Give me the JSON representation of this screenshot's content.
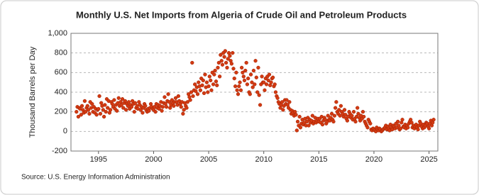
{
  "chart_data": {
    "type": "scatter",
    "title": "Monthly U.S. Net Imports from Algeria of Crude Oil and Petroleum Products",
    "y_label": "Thousand Barrels per Day",
    "source": "Source: U.S. Energy Information Administration",
    "color": "#d23a12",
    "grid": true,
    "xlim": [
      1992.5,
      2025.8
    ],
    "xticks": [
      1995,
      2000,
      2005,
      2010,
      2015,
      2020,
      2025
    ],
    "ylim": [
      -200,
      1000
    ],
    "yticks": [
      -200,
      0,
      200,
      400,
      600,
      800,
      {
        "value": 1000,
        "label": "1,000"
      }
    ],
    "x": [
      1993,
      1993.08,
      1993.17,
      1993.25,
      1993.33,
      1993.42,
      1993.5,
      1993.58,
      1993.67,
      1993.75,
      1993.83,
      1993.92,
      1994,
      1994.08,
      1994.17,
      1994.25,
      1994.33,
      1994.42,
      1994.5,
      1994.58,
      1994.67,
      1994.75,
      1994.83,
      1994.92,
      1995,
      1995.08,
      1995.17,
      1995.25,
      1995.33,
      1995.42,
      1995.5,
      1995.58,
      1995.67,
      1995.75,
      1995.83,
      1995.92,
      1996,
      1996.08,
      1996.17,
      1996.25,
      1996.33,
      1996.42,
      1996.5,
      1996.58,
      1996.67,
      1996.75,
      1996.83,
      1996.92,
      1997,
      1997.08,
      1997.17,
      1997.25,
      1997.33,
      1997.42,
      1997.5,
      1997.58,
      1997.67,
      1997.75,
      1997.83,
      1997.92,
      1998,
      1998.08,
      1998.17,
      1998.25,
      1998.33,
      1998.42,
      1998.5,
      1998.58,
      1998.67,
      1998.75,
      1998.83,
      1998.92,
      1999,
      1999.08,
      1999.17,
      1999.25,
      1999.33,
      1999.42,
      1999.5,
      1999.58,
      1999.67,
      1999.75,
      1999.83,
      1999.92,
      2000,
      2000.08,
      2000.17,
      2000.25,
      2000.33,
      2000.42,
      2000.5,
      2000.58,
      2000.67,
      2000.75,
      2000.83,
      2000.92,
      2001,
      2001.08,
      2001.17,
      2001.25,
      2001.33,
      2001.42,
      2001.5,
      2001.58,
      2001.67,
      2001.75,
      2001.83,
      2001.92,
      2002,
      2002.08,
      2002.17,
      2002.25,
      2002.33,
      2002.42,
      2002.5,
      2002.58,
      2002.67,
      2002.75,
      2002.83,
      2002.92,
      2003,
      2003.08,
      2003.17,
      2003.25,
      2003.33,
      2003.42,
      2003.5,
      2003.58,
      2003.67,
      2003.75,
      2003.83,
      2003.92,
      2004,
      2004.08,
      2004.17,
      2004.25,
      2004.33,
      2004.42,
      2004.5,
      2004.58,
      2004.67,
      2004.75,
      2004.83,
      2004.92,
      2005,
      2005.08,
      2005.17,
      2005.25,
      2005.33,
      2005.42,
      2005.5,
      2005.58,
      2005.67,
      2005.75,
      2005.83,
      2005.92,
      2006,
      2006.08,
      2006.17,
      2006.25,
      2006.33,
      2006.42,
      2006.5,
      2006.58,
      2006.67,
      2006.75,
      2006.83,
      2006.92,
      2007,
      2007.08,
      2007.17,
      2007.25,
      2007.33,
      2007.42,
      2007.5,
      2007.58,
      2007.67,
      2007.75,
      2007.83,
      2007.92,
      2008,
      2008.08,
      2008.17,
      2008.25,
      2008.33,
      2008.42,
      2008.5,
      2008.58,
      2008.67,
      2008.75,
      2008.83,
      2008.92,
      2009,
      2009.08,
      2009.17,
      2009.25,
      2009.33,
      2009.42,
      2009.5,
      2009.58,
      2009.67,
      2009.75,
      2009.83,
      2009.92,
      2010,
      2010.08,
      2010.17,
      2010.25,
      2010.33,
      2010.42,
      2010.5,
      2010.58,
      2010.67,
      2010.75,
      2010.83,
      2010.92,
      2011,
      2011.08,
      2011.17,
      2011.25,
      2011.33,
      2011.42,
      2011.5,
      2011.58,
      2011.67,
      2011.75,
      2011.83,
      2011.92,
      2012,
      2012.08,
      2012.17,
      2012.25,
      2012.33,
      2012.42,
      2012.5,
      2012.58,
      2012.67,
      2012.75,
      2012.83,
      2012.92,
      2013,
      2013.08,
      2013.17,
      2013.25,
      2013.33,
      2013.42,
      2013.5,
      2013.58,
      2013.67,
      2013.75,
      2013.83,
      2013.92,
      2014,
      2014.08,
      2014.17,
      2014.25,
      2014.33,
      2014.42,
      2014.5,
      2014.58,
      2014.67,
      2014.75,
      2014.83,
      2014.92,
      2015,
      2015.08,
      2015.17,
      2015.25,
      2015.33,
      2015.42,
      2015.5,
      2015.58,
      2015.67,
      2015.75,
      2015.83,
      2015.92,
      2016,
      2016.08,
      2016.17,
      2016.25,
      2016.33,
      2016.42,
      2016.5,
      2016.58,
      2016.67,
      2016.75,
      2016.83,
      2016.92,
      2017,
      2017.08,
      2017.17,
      2017.25,
      2017.33,
      2017.42,
      2017.5,
      2017.58,
      2017.67,
      2017.75,
      2017.83,
      2017.92,
      2018,
      2018.08,
      2018.17,
      2018.25,
      2018.33,
      2018.42,
      2018.5,
      2018.58,
      2018.67,
      2018.75,
      2018.83,
      2018.92,
      2019,
      2019.08,
      2019.17,
      2019.25,
      2019.33,
      2019.42,
      2019.5,
      2019.58,
      2019.67,
      2019.75,
      2019.83,
      2019.92,
      2020,
      2020.08,
      2020.17,
      2020.25,
      2020.33,
      2020.42,
      2020.5,
      2020.58,
      2020.67,
      2020.75,
      2020.83,
      2020.92,
      2021,
      2021.08,
      2021.17,
      2021.25,
      2021.33,
      2021.42,
      2021.5,
      2021.58,
      2021.67,
      2021.75,
      2021.83,
      2021.92,
      2022,
      2022.08,
      2022.17,
      2022.25,
      2022.33,
      2022.42,
      2022.5,
      2022.58,
      2022.67,
      2022.75,
      2022.83,
      2022.92,
      2023,
      2023.08,
      2023.17,
      2023.25,
      2023.33,
      2023.42,
      2023.5,
      2023.58,
      2023.67,
      2023.75,
      2023.83,
      2023.92,
      2024,
      2024.08,
      2024.17,
      2024.25,
      2024.33,
      2024.42,
      2024.5,
      2024.58,
      2024.67,
      2024.75,
      2024.83,
      2024.92,
      2025,
      2025.08,
      2025.17,
      2025.25,
      2025.33,
      2025.42
    ],
    "values": [
      200,
      250,
      150,
      240,
      230,
      170,
      260,
      220,
      190,
      310,
      200,
      240,
      260,
      220,
      180,
      300,
      240,
      280,
      200,
      250,
      190,
      230,
      170,
      220,
      230,
      360,
      180,
      290,
      260,
      220,
      150,
      270,
      200,
      330,
      240,
      310,
      190,
      220,
      300,
      280,
      250,
      320,
      230,
      270,
      210,
      290,
      340,
      260,
      300,
      270,
      330,
      240,
      290,
      310,
      220,
      280,
      260,
      300,
      230,
      270,
      250,
      310,
      280,
      200,
      290,
      240,
      260,
      230,
      300,
      270,
      220,
      250,
      190,
      240,
      280,
      260,
      220,
      200,
      230,
      210,
      240,
      280,
      250,
      230,
      220,
      250,
      200,
      280,
      240,
      270,
      230,
      260,
      300,
      210,
      250,
      290,
      350,
      280,
      250,
      310,
      380,
      300,
      240,
      270,
      320,
      290,
      260,
      300,
      340,
      300,
      270,
      360,
      310,
      280,
      250,
      300,
      180,
      220,
      290,
      260,
      240,
      300,
      380,
      350,
      320,
      400,
      700,
      360,
      420,
      480,
      410,
      450,
      380,
      500,
      460,
      420,
      540,
      470,
      520,
      390,
      580,
      450,
      500,
      400,
      460,
      560,
      520,
      420,
      600,
      480,
      580,
      620,
      510,
      470,
      650,
      700,
      560,
      780,
      720,
      680,
      800,
      760,
      820,
      700,
      650,
      740,
      800,
      770,
      720,
      690,
      800,
      640,
      540,
      460,
      600,
      420,
      380,
      460,
      500,
      420,
      650,
      600,
      560,
      520,
      620,
      700,
      480,
      540,
      400,
      380,
      580,
      500,
      450,
      620,
      480,
      720,
      550,
      400,
      650,
      370,
      270,
      480,
      560,
      500,
      500,
      420,
      540,
      480,
      560,
      520,
      580,
      470,
      500,
      540,
      550,
      460,
      480,
      400,
      360,
      340,
      300,
      280,
      240,
      270,
      300,
      220,
      260,
      320,
      280,
      320,
      270,
      240,
      300,
      220,
      180,
      210,
      190,
      160,
      200,
      170,
      10,
      100,
      60,
      150,
      40,
      80,
      120,
      70,
      90,
      130,
      60,
      100,
      140,
      60,
      120,
      90,
      110,
      160,
      80,
      100,
      140,
      90,
      110,
      130,
      100,
      130,
      90,
      150,
      70,
      110,
      140,
      120,
      80,
      100,
      160,
      120,
      110,
      140,
      180,
      120,
      100,
      160,
      240,
      300,
      200,
      180,
      220,
      160,
      260,
      200,
      180,
      150,
      220,
      170,
      130,
      110,
      150,
      200,
      180,
      140,
      160,
      120,
      200,
      130,
      100,
      150,
      240,
      180,
      140,
      110,
      160,
      130,
      200,
      150,
      100,
      80,
      60,
      40,
      120,
      100,
      80,
      20,
      10,
      30,
      20,
      10,
      0,
      40,
      20,
      10,
      30,
      20,
      0,
      10,
      20,
      30,
      40,
      60,
      20,
      50,
      30,
      10,
      70,
      40,
      20,
      60,
      50,
      30,
      80,
      40,
      100,
      60,
      20,
      30,
      90,
      120,
      50,
      40,
      70,
      30,
      60,
      40,
      80,
      100,
      120,
      90,
      40,
      60,
      30,
      50,
      70,
      40,
      20,
      60,
      100,
      80,
      50,
      30,
      70,
      40,
      60,
      90,
      80,
      50,
      30,
      80,
      110,
      60,
      90,
      120
    ]
  }
}
